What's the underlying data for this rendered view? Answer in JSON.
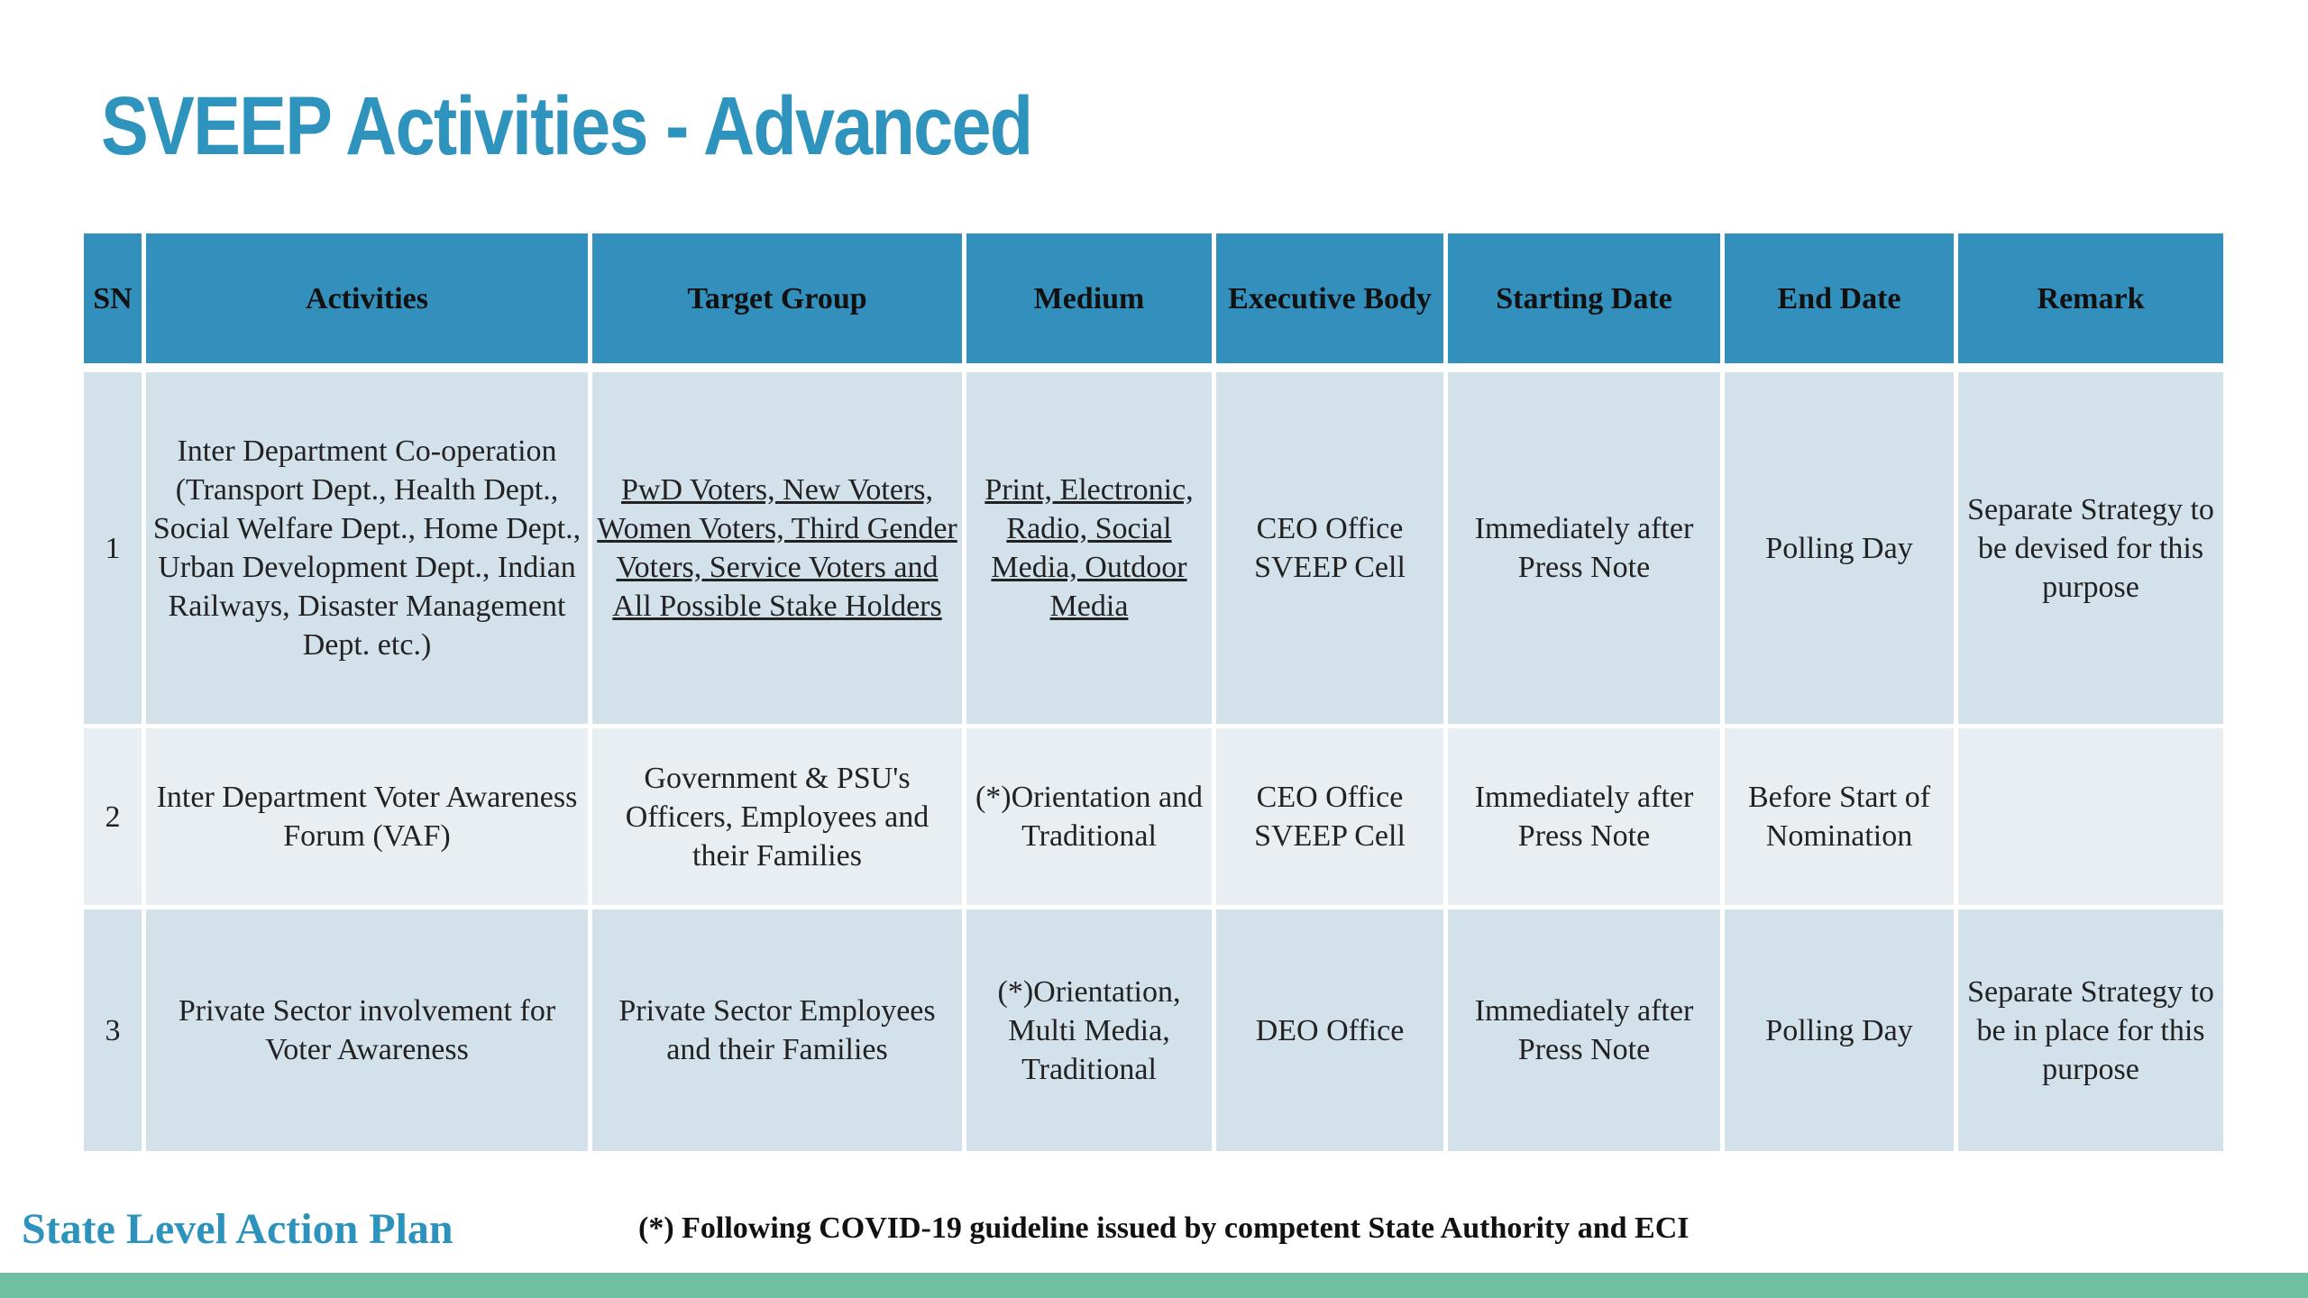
{
  "slide": {
    "title": "SVEEP Activities - Advanced",
    "footer_title": "State Level Action Plan",
    "footer_note": "(*) Following COVID-19 guideline issued by competent State Authority and ECI",
    "accent_color": "#2e93bd",
    "header_color": "#3390bd",
    "bar_color": "#6fbfa3"
  },
  "table": {
    "headers": [
      "SN",
      "Activities",
      "Target Group",
      "Medium",
      "Executive Body",
      "Starting Date",
      "End Date",
      "Remark"
    ],
    "rows": [
      {
        "sn": "1",
        "activities": "Inter Department Co-operation (Transport Dept., Health Dept., Social Welfare Dept., Home Dept., Urban Development Dept., Indian Railways, Disaster Management Dept. etc.)",
        "target_group": "PwD Voters, New Voters, Women Voters, Third Gender Voters, Service Voters and All Possible Stake Holders",
        "medium": "Print, Electronic, Radio, Social Media, Outdoor Media",
        "executive_body": "CEO Office SVEEP Cell",
        "starting_date": "Immediately after Press Note",
        "end_date": "Polling Day",
        "remark": "Separate Strategy to be devised for this purpose"
      },
      {
        "sn": "2",
        "activities": "Inter Department Voter Awareness Forum (VAF)",
        "target_group": "Government & PSU's Officers, Employees and their Families",
        "medium": "(*)Orientation and Traditional",
        "executive_body": "CEO Office SVEEP Cell",
        "starting_date": "Immediately after Press Note",
        "end_date": "Before Start of Nomination",
        "remark": ""
      },
      {
        "sn": "3",
        "activities": "Private Sector involvement for Voter Awareness",
        "target_group": "Private Sector Employees and their Families",
        "medium": "(*)Orientation, Multi Media, Traditional",
        "executive_body": "DEO Office",
        "starting_date": "Immediately after Press Note",
        "end_date": "Polling Day",
        "remark": "Separate Strategy to be in place for this purpose"
      }
    ]
  }
}
